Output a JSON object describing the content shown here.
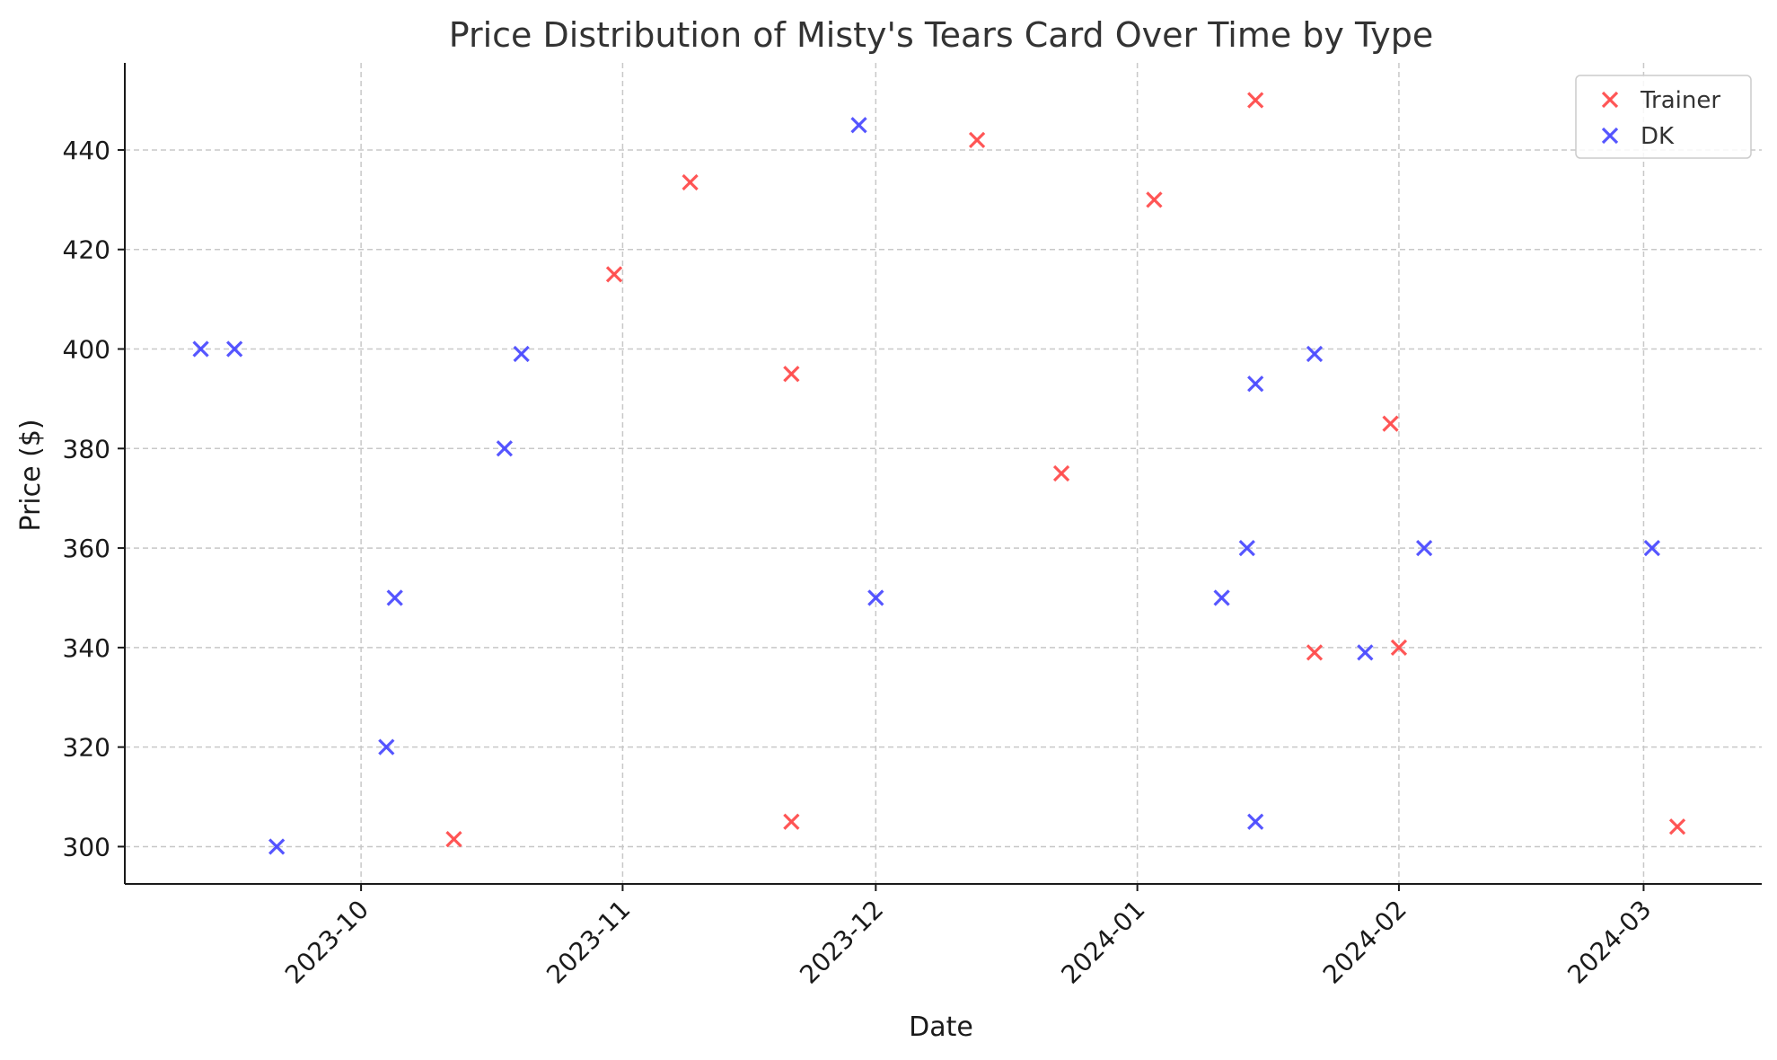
{
  "chart_data": {
    "type": "scatter",
    "title": "Price Distribution of Misty's Tears Card Over Time by Type",
    "xlabel": "Date",
    "ylabel": "Price ($)",
    "x_type": "date",
    "xlim": [
      "2023-09-03",
      "2024-03-15"
    ],
    "ylim": [
      292.5,
      457.5
    ],
    "x_ticks": [
      "2023-10-01",
      "2023-11-01",
      "2023-12-01",
      "2024-01-01",
      "2024-02-01",
      "2024-03-01"
    ],
    "x_tick_labels": [
      "2023-10",
      "2023-11",
      "2023-12",
      "2024-01",
      "2024-02",
      "2024-03"
    ],
    "y_ticks": [
      300,
      320,
      340,
      360,
      380,
      400,
      420,
      440
    ],
    "grid": true,
    "legend_position": "top-right",
    "series": [
      {
        "name": "Trainer",
        "color": "#ff4d4d",
        "marker": "x",
        "points": [
          {
            "x": "2023-10-12",
            "y": 301.5
          },
          {
            "x": "2023-10-31",
            "y": 415
          },
          {
            "x": "2023-11-09",
            "y": 433.5
          },
          {
            "x": "2023-11-21",
            "y": 305
          },
          {
            "x": "2023-11-21",
            "y": 395
          },
          {
            "x": "2023-12-13",
            "y": 442
          },
          {
            "x": "2023-12-23",
            "y": 375
          },
          {
            "x": "2024-01-03",
            "y": 430
          },
          {
            "x": "2024-01-15",
            "y": 450
          },
          {
            "x": "2024-01-22",
            "y": 339
          },
          {
            "x": "2024-01-31",
            "y": 385
          },
          {
            "x": "2024-02-01",
            "y": 340
          },
          {
            "x": "2024-03-05",
            "y": 304
          }
        ]
      },
      {
        "name": "DK",
        "color": "#4d4dff",
        "marker": "x",
        "points": [
          {
            "x": "2023-09-12",
            "y": 400
          },
          {
            "x": "2023-09-16",
            "y": 400
          },
          {
            "x": "2023-09-21",
            "y": 300
          },
          {
            "x": "2023-10-04",
            "y": 320
          },
          {
            "x": "2023-10-05",
            "y": 350
          },
          {
            "x": "2023-10-18",
            "y": 380
          },
          {
            "x": "2023-10-20",
            "y": 399
          },
          {
            "x": "2023-11-29",
            "y": 445
          },
          {
            "x": "2023-12-01",
            "y": 350
          },
          {
            "x": "2024-01-11",
            "y": 350
          },
          {
            "x": "2024-01-14",
            "y": 360
          },
          {
            "x": "2024-01-15",
            "y": 305
          },
          {
            "x": "2024-01-15",
            "y": 393
          },
          {
            "x": "2024-01-22",
            "y": 399
          },
          {
            "x": "2024-01-28",
            "y": 339
          },
          {
            "x": "2024-02-04",
            "y": 360
          },
          {
            "x": "2024-03-02",
            "y": 360
          }
        ]
      }
    ]
  }
}
